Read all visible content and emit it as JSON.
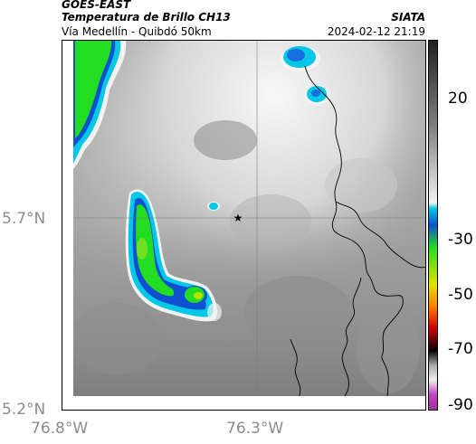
{
  "header": {
    "satellite": "GOES-EAST",
    "product": "Temperatura de Brillo CH13",
    "route": "Vía Medellín - Quibdó 50km",
    "organization": "SIATA",
    "timestamp": "2024-02-12 21:19"
  },
  "map": {
    "latitude_labels": [
      "5.7°N",
      "5.2°N"
    ],
    "longitude_labels": [
      "76.8°W",
      "76.3°W"
    ],
    "marker": "★",
    "marker_name": "route-point-star"
  },
  "colorbar": {
    "tick_labels": [
      "20",
      "-30",
      "-50",
      "-70",
      "-90"
    ],
    "colors": {
      "warm_top": "#2a2a2a",
      "warm_mid": "#9a9a9a",
      "cold_white": "#f2f2f2",
      "cyan": "#00c8e6",
      "blue": "#1050d0",
      "green": "#22dd22",
      "yellow": "#e0e000",
      "orange": "#ff8000",
      "red": "#d00000",
      "black": "#000000",
      "magenta": "#c040c0"
    }
  }
}
